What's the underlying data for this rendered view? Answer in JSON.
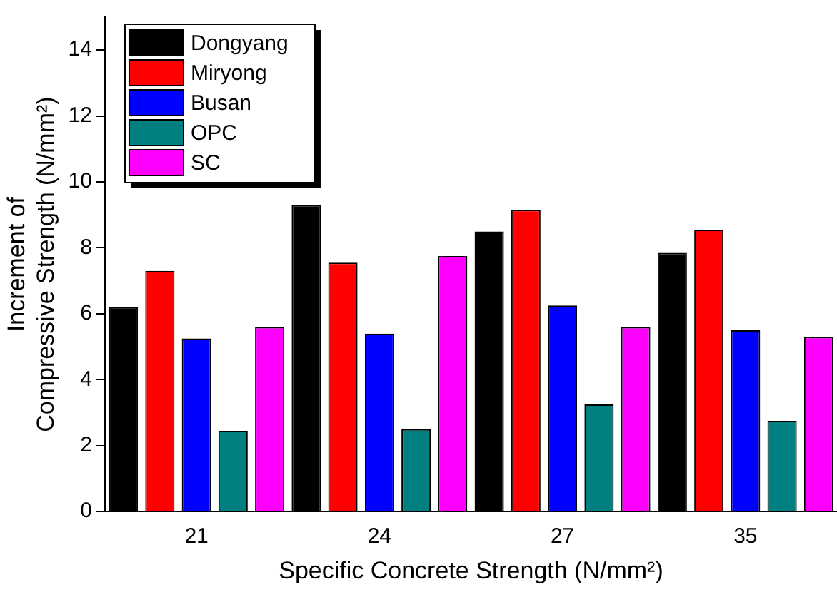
{
  "chart_data": {
    "type": "bar",
    "xlabel": "Specific Concrete Strength (N/mm²)",
    "ylabel": "Increment of\nCompressive Strength (N/mm²)",
    "categories": [
      "21",
      "24",
      "27",
      "35"
    ],
    "series": [
      {
        "name": "Dongyang",
        "color": "#000000",
        "values": [
          6.2,
          9.3,
          8.5,
          7.85
        ]
      },
      {
        "name": "Miryong",
        "color": "#ff0000",
        "values": [
          7.3,
          7.55,
          9.15,
          8.55
        ]
      },
      {
        "name": "Busan",
        "color": "#0000ff",
        "values": [
          5.25,
          5.4,
          6.25,
          5.5
        ]
      },
      {
        "name": "OPC",
        "color": "#008080",
        "values": [
          2.45,
          2.5,
          3.25,
          2.75
        ]
      },
      {
        "name": "SC",
        "color": "#ff00ff",
        "values": [
          5.6,
          7.75,
          5.6,
          5.3
        ]
      }
    ],
    "ylim": [
      0,
      15
    ],
    "yticks": [
      0,
      2,
      4,
      6,
      8,
      10,
      12,
      14
    ],
    "grid": false,
    "legend": "top left"
  }
}
